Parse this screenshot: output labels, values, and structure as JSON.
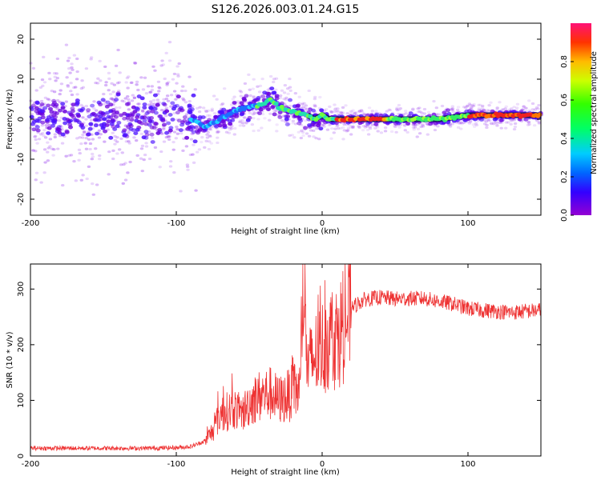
{
  "title": "S126.2026.003.01.24.G15",
  "chart_data": [
    {
      "type": "scatter",
      "name": "spectrogram",
      "xlabel": "Height of straight line (km)",
      "ylabel": "Frequency (Hz)",
      "xlim": [
        -200,
        150
      ],
      "ylim": [
        -24,
        24
      ],
      "xticks": [
        -200,
        -100,
        0,
        100
      ],
      "yticks": [
        -20,
        -10,
        0,
        10,
        20
      ],
      "colorbar": {
        "label": "Normalized spectral amplitude",
        "range": [
          0,
          1
        ],
        "ticks": [
          "0.0",
          "0.2",
          "0.4",
          "0.6",
          "0.8"
        ]
      },
      "dominant_frequency": {
        "x": [
          -200,
          -180,
          -160,
          -140,
          -120,
          -100,
          -90,
          -80,
          -70,
          -60,
          -50,
          -40,
          -35,
          -30,
          -20,
          -10,
          -5,
          0,
          5,
          10,
          20,
          40,
          60,
          80,
          100,
          120,
          150
        ],
        "y": [
          0,
          1,
          0,
          1,
          0,
          1,
          0,
          -2,
          0,
          2,
          3,
          4,
          5,
          3,
          2,
          1,
          0,
          1,
          0,
          0,
          0,
          0,
          0,
          0,
          1,
          1,
          1
        ]
      }
    },
    {
      "type": "line",
      "name": "snr",
      "xlabel": "Height of straight line (km)",
      "ylabel": "SNR (10 * v/v)",
      "xlim": [
        -200,
        150
      ],
      "ylim": [
        0,
        345
      ],
      "xticks": [
        -200,
        -100,
        0,
        100
      ],
      "yticks": [
        0,
        100,
        200,
        300
      ],
      "color": "#ee3333",
      "series": [
        {
          "name": "SNR",
          "x": [
            -200,
            -180,
            -160,
            -140,
            -120,
            -100,
            -90,
            -85,
            -80,
            -75,
            -70,
            -65,
            -60,
            -55,
            -50,
            -45,
            -40,
            -35,
            -30,
            -25,
            -20,
            -15,
            -13,
            -10,
            -5,
            0,
            5,
            10,
            15,
            20,
            25,
            30,
            40,
            50,
            60,
            70,
            80,
            90,
            100,
            110,
            120,
            130,
            140,
            150
          ],
          "y": [
            14,
            14,
            14,
            14,
            14,
            15,
            17,
            22,
            28,
            45,
            75,
            80,
            85,
            75,
            95,
            105,
            110,
            112,
            100,
            105,
            115,
            120,
            330,
            155,
            180,
            195,
            210,
            215,
            235,
            265,
            275,
            282,
            285,
            282,
            283,
            283,
            278,
            273,
            265,
            262,
            260,
            258,
            260,
            262
          ]
        }
      ]
    }
  ]
}
